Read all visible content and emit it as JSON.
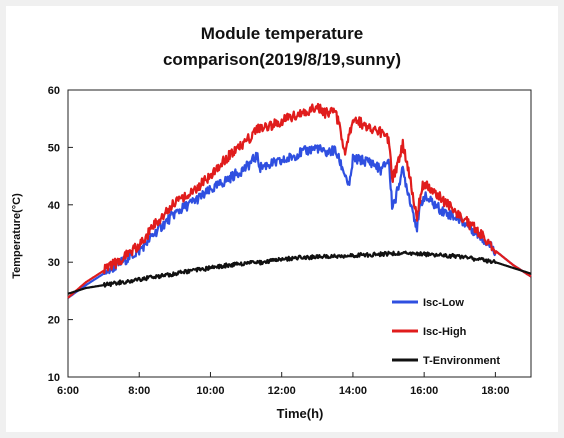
{
  "chart_data": {
    "type": "line",
    "title_lines": [
      "Module temperature",
      "comparison(2019/8/19,sunny)"
    ],
    "xlabel": "Time(h)",
    "ylabel": "Temperature(°C)",
    "x_ticks": [
      "6:00",
      "8:00",
      "10:00",
      "12:00",
      "14:00",
      "16:00",
      "18:00"
    ],
    "y_ticks": [
      10,
      20,
      30,
      40,
      50,
      60
    ],
    "xlim": [
      6,
      19
    ],
    "ylim": [
      10,
      60
    ],
    "grid": false,
    "legend_position": "bottom-right",
    "series": [
      {
        "name": "Isc-Low",
        "color": "#2f4fe0",
        "x": [
          6.0,
          6.5,
          7.0,
          7.5,
          8.0,
          8.5,
          9.0,
          9.5,
          10.0,
          10.5,
          11.0,
          11.3,
          11.4,
          11.6,
          12.0,
          12.5,
          13.0,
          13.2,
          13.5,
          13.8,
          13.9,
          14.0,
          14.5,
          14.8,
          15.0,
          15.1,
          15.2,
          15.3,
          15.4,
          15.6,
          15.8,
          15.9,
          16.0,
          16.5,
          17.0,
          17.5,
          18.0,
          18.5,
          19.0
        ],
        "values": [
          23.8,
          26.0,
          28.0,
          30.0,
          32.0,
          35.5,
          38.5,
          40.5,
          42.5,
          44.5,
          46.5,
          48.5,
          46.5,
          47.0,
          47.5,
          49.0,
          50.0,
          49.0,
          49.5,
          45.0,
          43.0,
          48.0,
          47.5,
          46.0,
          48.0,
          40.0,
          41.0,
          44.0,
          46.0,
          41.0,
          36.0,
          40.0,
          41.5,
          39.0,
          37.5,
          35.0,
          32.0,
          29.5,
          27.5
        ]
      },
      {
        "name": "Isc-High",
        "color": "#e01c1c",
        "x": [
          6.0,
          6.5,
          7.0,
          7.5,
          8.0,
          8.5,
          9.0,
          9.5,
          10.0,
          10.5,
          11.0,
          11.3,
          11.5,
          12.0,
          12.5,
          13.0,
          13.2,
          13.5,
          13.8,
          14.0,
          14.3,
          14.5,
          14.8,
          15.0,
          15.1,
          15.2,
          15.4,
          15.6,
          15.8,
          15.9,
          16.0,
          16.5,
          17.0,
          17.5,
          18.0,
          18.5,
          19.0
        ],
        "values": [
          23.8,
          26.5,
          28.5,
          30.5,
          33.0,
          37.0,
          40.5,
          42.5,
          45.0,
          48.5,
          51.0,
          53.0,
          53.5,
          54.5,
          56.0,
          57.0,
          56.0,
          56.5,
          49.0,
          55.0,
          54.0,
          53.5,
          52.5,
          51.5,
          44.5,
          46.0,
          50.5,
          45.0,
          37.5,
          42.0,
          44.0,
          41.0,
          38.0,
          35.5,
          32.0,
          29.5,
          27.5
        ]
      },
      {
        "name": "T-Environment",
        "color": "#111111",
        "x": [
          6.0,
          6.5,
          7.0,
          7.5,
          8.0,
          8.5,
          9.0,
          9.5,
          10.0,
          10.5,
          11.0,
          11.5,
          12.0,
          12.5,
          13.0,
          13.5,
          14.0,
          14.5,
          15.0,
          15.5,
          16.0,
          16.5,
          17.0,
          17.5,
          18.0,
          18.5,
          19.0
        ],
        "values": [
          24.5,
          25.5,
          26.0,
          26.5,
          27.0,
          27.5,
          28.0,
          28.5,
          29.0,
          29.5,
          29.8,
          30.0,
          30.5,
          30.8,
          30.9,
          31.0,
          31.2,
          31.3,
          31.5,
          31.5,
          31.4,
          31.2,
          31.0,
          30.5,
          30.0,
          29.0,
          28.0
        ]
      }
    ]
  }
}
